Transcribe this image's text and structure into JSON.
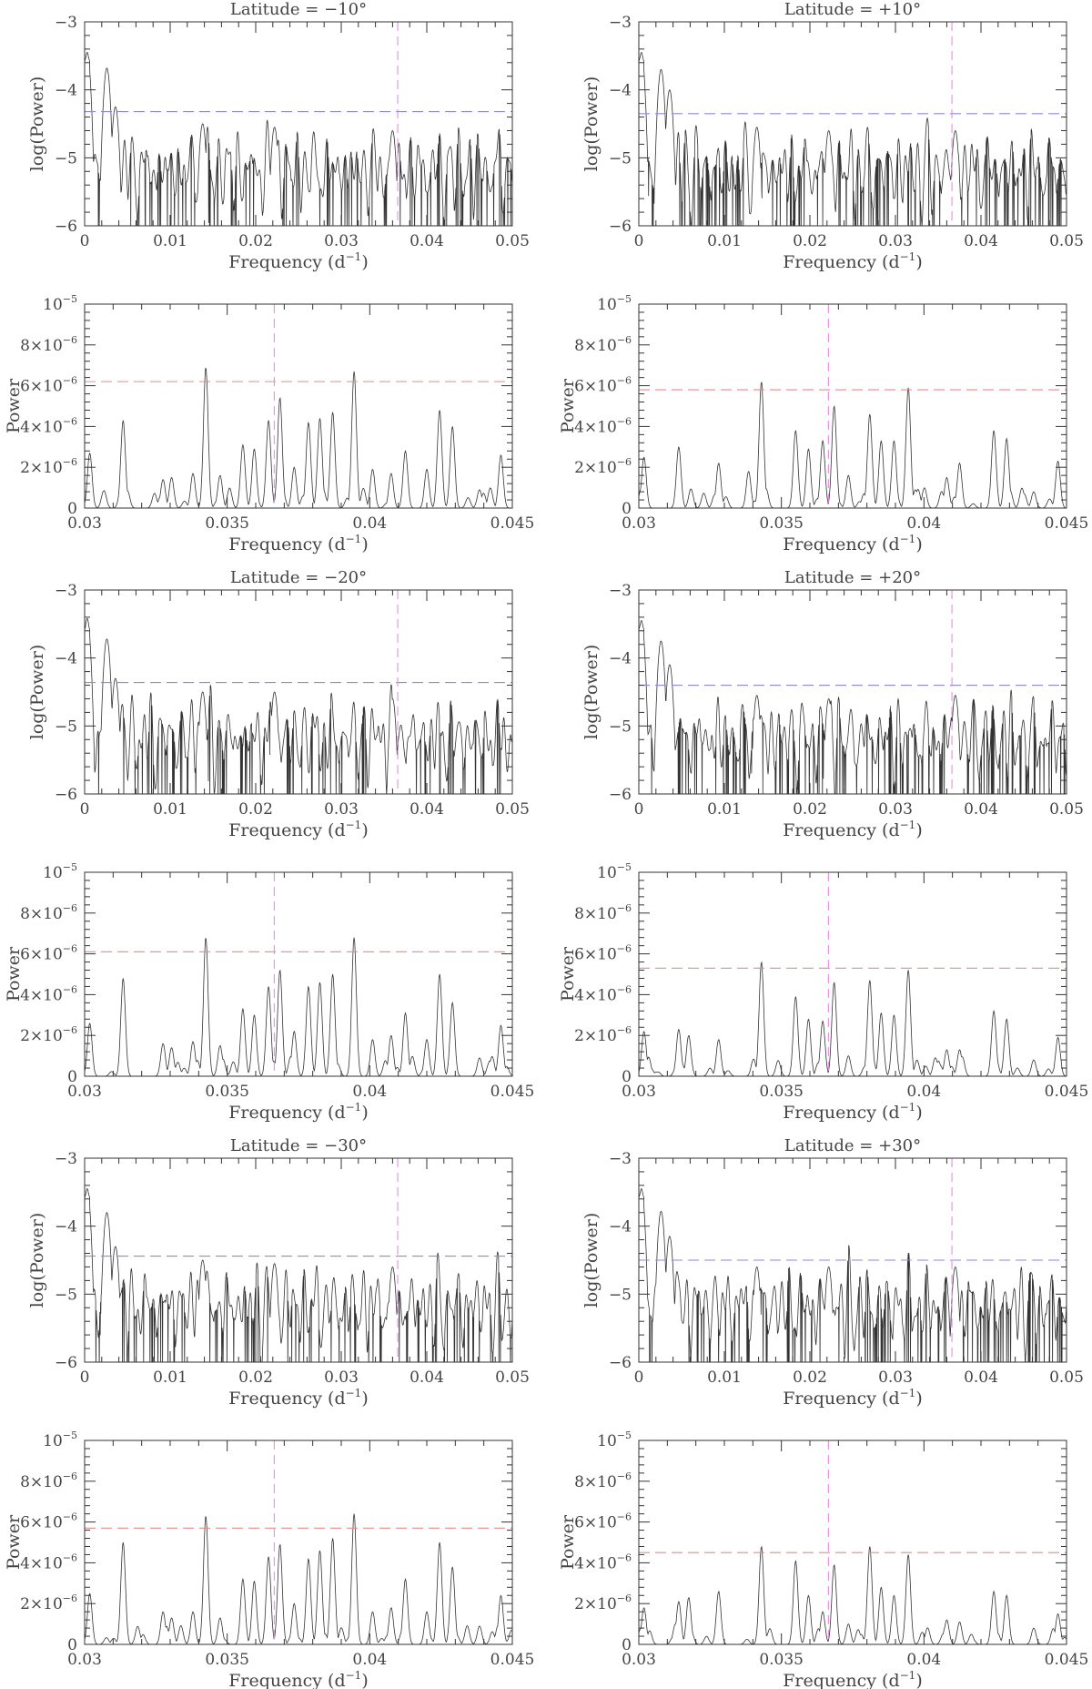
{
  "colors": {
    "threshold_log": "#8a8ae6",
    "threshold_lin": "#e68a8a",
    "marker": "#e88be8",
    "trace": "#333333"
  },
  "chart_data": [
    {
      "type": "line",
      "title": "Latitude = −10°",
      "xlabel_main": "Frequency (d",
      "xlabel_sup": "−1",
      "xlabel_close": ")",
      "ylabel": "log(Power)",
      "xlim": [
        0,
        0.05
      ],
      "ylim": [
        -6,
        -3
      ],
      "xscale": "linear",
      "xticks": [
        "0",
        "0.01",
        "0.02",
        "0.03",
        "0.04",
        "0.05"
      ],
      "yticks": [
        "−6",
        "−5",
        "−4",
        "−3"
      ],
      "threshold": -4.32,
      "marker_x": 0.0366,
      "seed": 11,
      "grid": false,
      "peaks": [
        [
          0.0003,
          -3.45
        ],
        [
          0.0026,
          -3.68
        ],
        [
          0.0036,
          -4.25
        ],
        [
          0.0138,
          -4.5
        ],
        [
          0.0222,
          -4.55
        ],
        [
          0.036,
          -4.6
        ]
      ]
    },
    {
      "type": "line",
      "title": "Latitude = +10°",
      "xlabel_main": "Frequency (d",
      "xlabel_sup": "−1",
      "xlabel_close": ")",
      "ylabel": "log(Power)",
      "xlim": [
        0,
        0.05
      ],
      "ylim": [
        -6,
        -3
      ],
      "xscale": "linear",
      "xticks": [
        "0",
        "0.01",
        "0.02",
        "0.03",
        "0.04",
        "0.05"
      ],
      "yticks": [
        "−6",
        "−5",
        "−4",
        "−3"
      ],
      "threshold": -4.35,
      "marker_x": 0.0366,
      "seed": 23,
      "grid": false,
      "peaks": [
        [
          0.0003,
          -3.45
        ],
        [
          0.0026,
          -3.7
        ],
        [
          0.0036,
          -4.0
        ],
        [
          0.0138,
          -4.55
        ],
        [
          0.0222,
          -4.6
        ],
        [
          0.037,
          -4.6
        ]
      ]
    },
    {
      "type": "line",
      "title": "",
      "xlabel_main": "Frequency (d",
      "xlabel_sup": "−1",
      "xlabel_close": ")",
      "ylabel": "Power",
      "xlim": [
        0.03,
        0.045
      ],
      "ylim": [
        0,
        1e-05
      ],
      "xscale": "linear",
      "xticks": [
        "0.03",
        "0.035",
        "0.04",
        "0.045"
      ],
      "yticks": [
        "0",
        "2×10",
        "4×10",
        "6×10",
        "8×10",
        "10"
      ],
      "ytick_sups": [
        "",
        "−6",
        "−6",
        "−6",
        "−6",
        "−5"
      ],
      "threshold": 6.2e-06,
      "marker_x": 0.03665,
      "seed": 31,
      "grid": false,
      "peaks": [
        [
          0.03018,
          2.7e-06
        ],
        [
          0.03135,
          4.3e-06
        ],
        [
          0.03275,
          1.4e-06
        ],
        [
          0.03305,
          1.5e-06
        ],
        [
          0.0338,
          1.7e-06
        ],
        [
          0.03425,
          6.9e-06
        ],
        [
          0.03475,
          1.6e-06
        ],
        [
          0.03555,
          3.1e-06
        ],
        [
          0.03595,
          2.9e-06
        ],
        [
          0.03645,
          4.3e-06
        ],
        [
          0.03685,
          5.4e-06
        ],
        [
          0.03735,
          2e-06
        ],
        [
          0.03785,
          4.2e-06
        ],
        [
          0.03825,
          4.4e-06
        ],
        [
          0.0387,
          4.7e-06
        ],
        [
          0.03945,
          6.7e-06
        ],
        [
          0.0401,
          1.9e-06
        ],
        [
          0.04075,
          1.7e-06
        ],
        [
          0.04125,
          2.8e-06
        ],
        [
          0.042,
          1.9e-06
        ],
        [
          0.04245,
          4.8e-06
        ],
        [
          0.0429,
          4e-06
        ],
        [
          0.04385,
          9e-07
        ],
        [
          0.0446,
          2.6e-06
        ]
      ]
    },
    {
      "type": "line",
      "title": "",
      "xlabel_main": "Frequency (d",
      "xlabel_sup": "−1",
      "xlabel_close": ")",
      "ylabel": "Power",
      "xlim": [
        0.03,
        0.045
      ],
      "ylim": [
        0,
        1e-05
      ],
      "xscale": "linear",
      "xticks": [
        "0.03",
        "0.035",
        "0.04",
        "0.045"
      ],
      "yticks": [
        "0",
        "2×10",
        "4×10",
        "6×10",
        "8×10",
        "10"
      ],
      "ytick_sups": [
        "",
        "−6",
        "−6",
        "−6",
        "−6",
        "−5"
      ],
      "threshold": 5.8e-06,
      "marker_x": 0.03665,
      "seed": 47,
      "grid": false,
      "peaks": [
        [
          0.03018,
          2.5e-06
        ],
        [
          0.0314,
          3e-06
        ],
        [
          0.0328,
          2.2e-06
        ],
        [
          0.03385,
          1.8e-06
        ],
        [
          0.0343,
          6.2e-06
        ],
        [
          0.0355,
          3.8e-06
        ],
        [
          0.03595,
          2.9e-06
        ],
        [
          0.03645,
          3.3e-06
        ],
        [
          0.03685,
          5e-06
        ],
        [
          0.03735,
          1.6e-06
        ],
        [
          0.0381,
          4.6e-06
        ],
        [
          0.0385,
          3.3e-06
        ],
        [
          0.03895,
          3.3e-06
        ],
        [
          0.03945,
          5.9e-06
        ],
        [
          0.0408,
          1.5e-06
        ],
        [
          0.04125,
          2.2e-06
        ],
        [
          0.04245,
          3.8e-06
        ],
        [
          0.0429,
          3.4e-06
        ],
        [
          0.04385,
          8e-07
        ],
        [
          0.0447,
          2.3e-06
        ]
      ]
    },
    {
      "type": "line",
      "title": "Latitude = −20°",
      "xlabel_main": "Frequency (d",
      "xlabel_sup": "−1",
      "xlabel_close": ")",
      "ylabel": "log(Power)",
      "xlim": [
        0,
        0.05
      ],
      "ylim": [
        -6,
        -3
      ],
      "xscale": "linear",
      "xticks": [
        "0",
        "0.01",
        "0.02",
        "0.03",
        "0.04",
        "0.05"
      ],
      "yticks": [
        "−6",
        "−5",
        "−4",
        "−3"
      ],
      "threshold": -4.36,
      "marker_x": 0.0366,
      "seed": 53,
      "grid": false,
      "peaks": [
        [
          0.0003,
          -3.42
        ],
        [
          0.0026,
          -3.72
        ],
        [
          0.0036,
          -4.3
        ],
        [
          0.0138,
          -4.5
        ],
        [
          0.0222,
          -4.5
        ],
        [
          0.036,
          -4.6
        ]
      ]
    },
    {
      "type": "line",
      "title": "Latitude = +20°",
      "xlabel_main": "Frequency (d",
      "xlabel_sup": "−1",
      "xlabel_close": ")",
      "ylabel": "log(Power)",
      "xlim": [
        0,
        0.05
      ],
      "ylim": [
        -6,
        -3
      ],
      "xscale": "linear",
      "xticks": [
        "0",
        "0.01",
        "0.02",
        "0.03",
        "0.04",
        "0.05"
      ],
      "yticks": [
        "−6",
        "−5",
        "−4",
        "−3"
      ],
      "threshold": -4.4,
      "marker_x": 0.0366,
      "seed": 67,
      "grid": false,
      "peaks": [
        [
          0.0003,
          -3.45
        ],
        [
          0.0026,
          -3.75
        ],
        [
          0.0036,
          -4.1
        ],
        [
          0.0138,
          -4.55
        ],
        [
          0.0222,
          -4.6
        ],
        [
          0.037,
          -4.55
        ]
      ]
    },
    {
      "type": "line",
      "title": "",
      "xlabel_main": "Frequency (d",
      "xlabel_sup": "−1",
      "xlabel_close": ")",
      "ylabel": "Power",
      "xlim": [
        0.03,
        0.045
      ],
      "ylim": [
        0,
        1e-05
      ],
      "xscale": "linear",
      "xticks": [
        "0.03",
        "0.035",
        "0.04",
        "0.045"
      ],
      "yticks": [
        "0",
        "2×10",
        "4×10",
        "6×10",
        "8×10",
        "10"
      ],
      "ytick_sups": [
        "",
        "−6",
        "−6",
        "−6",
        "−6",
        "−5"
      ],
      "threshold": 6.1e-06,
      "marker_x": 0.03665,
      "seed": 71,
      "grid": false,
      "peaks": [
        [
          0.03018,
          2.6e-06
        ],
        [
          0.03135,
          4.8e-06
        ],
        [
          0.03275,
          1.6e-06
        ],
        [
          0.03305,
          1.4e-06
        ],
        [
          0.0338,
          1.7e-06
        ],
        [
          0.03425,
          6.8e-06
        ],
        [
          0.03475,
          1.5e-06
        ],
        [
          0.03555,
          3.3e-06
        ],
        [
          0.03595,
          3e-06
        ],
        [
          0.03645,
          4.4e-06
        ],
        [
          0.03685,
          5.2e-06
        ],
        [
          0.03735,
          2.2e-06
        ],
        [
          0.03785,
          4.4e-06
        ],
        [
          0.03825,
          4.6e-06
        ],
        [
          0.0387,
          5e-06
        ],
        [
          0.03945,
          6.8e-06
        ],
        [
          0.0401,
          1.8e-06
        ],
        [
          0.04075,
          2e-06
        ],
        [
          0.04125,
          3.1e-06
        ],
        [
          0.042,
          1.8e-06
        ],
        [
          0.04245,
          5e-06
        ],
        [
          0.0429,
          3.6e-06
        ],
        [
          0.04385,
          9e-07
        ],
        [
          0.0446,
          2.5e-06
        ]
      ]
    },
    {
      "type": "line",
      "title": "",
      "xlabel_main": "Frequency (d",
      "xlabel_sup": "−1",
      "xlabel_close": ")",
      "ylabel": "Power",
      "xlim": [
        0.03,
        0.045
      ],
      "ylim": [
        0,
        1e-05
      ],
      "xscale": "linear",
      "xticks": [
        "0.03",
        "0.035",
        "0.04",
        "0.045"
      ],
      "yticks": [
        "0",
        "2×10",
        "4×10",
        "6×10",
        "8×10",
        "10"
      ],
      "ytick_sups": [
        "",
        "−6",
        "−6",
        "−6",
        "−6",
        "−5"
      ],
      "threshold": 5.3e-06,
      "marker_x": 0.03665,
      "seed": 83,
      "grid": false,
      "peaks": [
        [
          0.03018,
          2.2e-06
        ],
        [
          0.0314,
          2.3e-06
        ],
        [
          0.03175,
          2e-06
        ],
        [
          0.0328,
          1.8e-06
        ],
        [
          0.0343,
          5.6e-06
        ],
        [
          0.0355,
          3.9e-06
        ],
        [
          0.03595,
          2.8e-06
        ],
        [
          0.03645,
          2.7e-06
        ],
        [
          0.03685,
          4.6e-06
        ],
        [
          0.03735,
          1e-06
        ],
        [
          0.0381,
          4.7e-06
        ],
        [
          0.0385,
          3.1e-06
        ],
        [
          0.03895,
          3e-06
        ],
        [
          0.03945,
          5.2e-06
        ],
        [
          0.0408,
          1.3e-06
        ],
        [
          0.04125,
          1.3e-06
        ],
        [
          0.04245,
          3.2e-06
        ],
        [
          0.0429,
          2.8e-06
        ],
        [
          0.04385,
          8e-07
        ],
        [
          0.0447,
          1.9e-06
        ]
      ]
    },
    {
      "type": "line",
      "title": "Latitude = −30°",
      "xlabel_main": "Frequency (d",
      "xlabel_sup": "−1",
      "xlabel_close": ")",
      "ylabel": "log(Power)",
      "xlim": [
        0,
        0.05
      ],
      "ylim": [
        -6,
        -3
      ],
      "xscale": "linear",
      "xticks": [
        "0",
        "0.01",
        "0.02",
        "0.03",
        "0.04",
        "0.05"
      ],
      "yticks": [
        "−6",
        "−5",
        "−4",
        "−3"
      ],
      "threshold": -4.44,
      "marker_x": 0.0366,
      "seed": 97,
      "grid": false,
      "peaks": [
        [
          0.0003,
          -3.45
        ],
        [
          0.0026,
          -3.8
        ],
        [
          0.0036,
          -4.3
        ],
        [
          0.0138,
          -4.5
        ],
        [
          0.0222,
          -4.55
        ],
        [
          0.036,
          -4.6
        ]
      ]
    },
    {
      "type": "line",
      "title": "Latitude = +30°",
      "xlabel_main": "Frequency (d",
      "xlabel_sup": "−1",
      "xlabel_close": ")",
      "ylabel": "log(Power)",
      "xlim": [
        0,
        0.05
      ],
      "ylim": [
        -6,
        -3
      ],
      "xscale": "linear",
      "xticks": [
        "0",
        "0.01",
        "0.02",
        "0.03",
        "0.04",
        "0.05"
      ],
      "yticks": [
        "−6",
        "−5",
        "−4",
        "−3"
      ],
      "threshold": -4.5,
      "marker_x": 0.0366,
      "seed": 101,
      "grid": false,
      "peaks": [
        [
          0.0003,
          -3.45
        ],
        [
          0.0026,
          -3.78
        ],
        [
          0.0036,
          -4.15
        ],
        [
          0.0138,
          -4.6
        ],
        [
          0.0222,
          -4.6
        ],
        [
          0.037,
          -4.6
        ]
      ]
    },
    {
      "type": "line",
      "title": "",
      "xlabel_main": "Frequency (d",
      "xlabel_sup": "−1",
      "xlabel_close": ")",
      "ylabel": "Power",
      "xlim": [
        0.03,
        0.045
      ],
      "ylim": [
        0,
        1e-05
      ],
      "xscale": "linear",
      "xticks": [
        "0.03",
        "0.035",
        "0.04",
        "0.045"
      ],
      "yticks": [
        "0",
        "2×10",
        "4×10",
        "6×10",
        "8×10",
        "10"
      ],
      "ytick_sups": [
        "",
        "−6",
        "−6",
        "−6",
        "−6",
        "−5"
      ],
      "threshold": 5.7e-06,
      "marker_x": 0.03665,
      "seed": 113,
      "grid": false,
      "peaks": [
        [
          0.03018,
          2.5e-06
        ],
        [
          0.03135,
          5e-06
        ],
        [
          0.03275,
          1.6e-06
        ],
        [
          0.03305,
          1.3e-06
        ],
        [
          0.0338,
          1.6e-06
        ],
        [
          0.03425,
          6.3e-06
        ],
        [
          0.03475,
          1.3e-06
        ],
        [
          0.03555,
          3.2e-06
        ],
        [
          0.03595,
          3.1e-06
        ],
        [
          0.03645,
          4.3e-06
        ],
        [
          0.03685,
          4.9e-06
        ],
        [
          0.03735,
          2e-06
        ],
        [
          0.03785,
          4.2e-06
        ],
        [
          0.03825,
          4.6e-06
        ],
        [
          0.0387,
          5.2e-06
        ],
        [
          0.03945,
          6.4e-06
        ],
        [
          0.0401,
          1.6e-06
        ],
        [
          0.04075,
          1.8e-06
        ],
        [
          0.04125,
          3.2e-06
        ],
        [
          0.042,
          1.6e-06
        ],
        [
          0.04245,
          5e-06
        ],
        [
          0.0429,
          3.8e-06
        ],
        [
          0.04385,
          9e-07
        ],
        [
          0.0446,
          2.4e-06
        ]
      ]
    },
    {
      "type": "line",
      "title": "",
      "xlabel_main": "Frequency (d",
      "xlabel_sup": "−1",
      "xlabel_close": ")",
      "ylabel": "Power",
      "xlim": [
        0.03,
        0.045
      ],
      "ylim": [
        0,
        1e-05
      ],
      "xscale": "linear",
      "xticks": [
        "0.03",
        "0.035",
        "0.04",
        "0.045"
      ],
      "yticks": [
        "0",
        "2×10",
        "4×10",
        "6×10",
        "8×10",
        "10"
      ],
      "ytick_sups": [
        "",
        "−6",
        "−6",
        "−6",
        "−6",
        "−5"
      ],
      "threshold": 4.5e-06,
      "marker_x": 0.03665,
      "seed": 127,
      "grid": false,
      "peaks": [
        [
          0.03018,
          1.8e-06
        ],
        [
          0.0314,
          2.1e-06
        ],
        [
          0.03175,
          2.3e-06
        ],
        [
          0.0328,
          2.6e-06
        ],
        [
          0.0343,
          4.8e-06
        ],
        [
          0.0355,
          4.1e-06
        ],
        [
          0.03595,
          2.4e-06
        ],
        [
          0.03645,
          1.6e-06
        ],
        [
          0.03685,
          3.9e-06
        ],
        [
          0.03735,
          1e-06
        ],
        [
          0.0381,
          4.8e-06
        ],
        [
          0.0385,
          2.8e-06
        ],
        [
          0.03895,
          2.4e-06
        ],
        [
          0.03945,
          4.4e-06
        ],
        [
          0.0408,
          1.2e-06
        ],
        [
          0.04125,
          1.1e-06
        ],
        [
          0.04245,
          2.6e-06
        ],
        [
          0.0429,
          2.4e-06
        ],
        [
          0.04385,
          8e-07
        ],
        [
          0.0447,
          1.5e-06
        ]
      ]
    }
  ]
}
